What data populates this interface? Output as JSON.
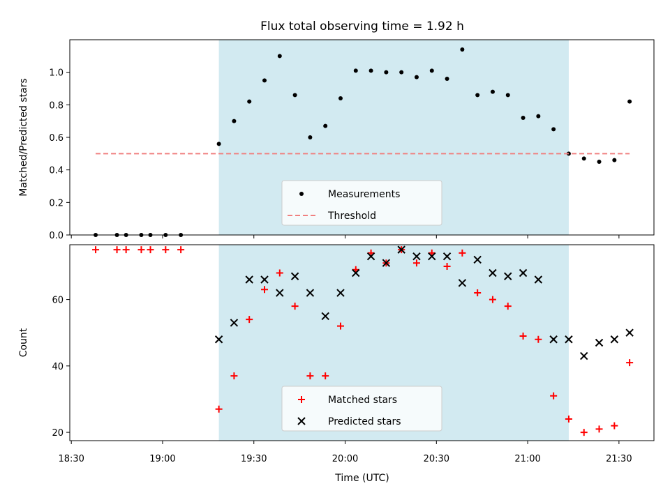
{
  "chart_data": {
    "title": "Flux total observing time = 1.92 h",
    "xlabel": "Time (UTC)",
    "x_tick_labels": [
      "18:30",
      "19:00",
      "19:30",
      "20:00",
      "20:30",
      "21:00",
      "21:30"
    ],
    "x_tick_minutes": [
      1110,
      1140,
      1170,
      1200,
      1230,
      1260,
      1290
    ],
    "xlim_minutes": [
      1109.5,
      1301.5
    ],
    "shaded_interval_minutes": [
      1158.5,
      1273.5
    ],
    "shaded_color": "#add8e6",
    "panels": [
      {
        "type": "scatter",
        "ylabel": "Matched/Predicted stars",
        "ylim": [
          0,
          1.2
        ],
        "y_ticks": [
          0.0,
          0.2,
          0.4,
          0.6,
          0.8,
          1.0
        ],
        "y_tick_labels": [
          "0.0",
          "0.2",
          "0.4",
          "0.6",
          "0.8",
          "1.0"
        ],
        "legend": {
          "position": "lower-center",
          "entries": [
            "Measurements",
            "Threshold"
          ]
        },
        "series": [
          {
            "name": "Measurements",
            "marker": "dot",
            "color": "#000000",
            "x": [
              1118,
              1125,
              1128,
              1133,
              1136,
              1141,
              1146,
              1158.5,
              1163.5,
              1168.5,
              1173.5,
              1178.5,
              1183.5,
              1188.5,
              1193.5,
              1198.5,
              1203.5,
              1208.5,
              1213.5,
              1218.5,
              1223.5,
              1228.5,
              1233.5,
              1238.5,
              1243.5,
              1248.5,
              1253.5,
              1258.5,
              1263.5,
              1268.5,
              1273.5,
              1278.5,
              1283.5,
              1288.5,
              1293.5
            ],
            "y": [
              0.0,
              0.0,
              0.0,
              0.0,
              0.0,
              0.0,
              0.0,
              0.56,
              0.7,
              0.82,
              0.95,
              1.1,
              0.86,
              0.6,
              0.67,
              0.84,
              1.01,
              1.01,
              1.0,
              1.0,
              0.97,
              1.01,
              0.96,
              1.14,
              0.86,
              0.88,
              0.86,
              0.72,
              0.73,
              0.65,
              0.5,
              0.47,
              0.45,
              0.46,
              0.82
            ]
          },
          {
            "name": "Threshold",
            "type": "line",
            "style": "dashed",
            "color": "#f08080",
            "x": [
              1118,
              1293.5
            ],
            "y": [
              0.5,
              0.5
            ]
          }
        ]
      },
      {
        "type": "scatter",
        "ylabel": "Count",
        "ylim": [
          17.5,
          76.5
        ],
        "y_ticks": [
          20,
          40,
          60
        ],
        "y_tick_labels": [
          "20",
          "40",
          "60"
        ],
        "legend": {
          "position": "lower-center",
          "entries": [
            "Matched stars",
            "Predicted stars"
          ]
        },
        "series": [
          {
            "name": "Matched stars",
            "marker": "plus",
            "color": "#ff0000",
            "x": [
              1118,
              1125,
              1128,
              1133,
              1136,
              1141,
              1146,
              1158.5,
              1163.5,
              1168.5,
              1173.5,
              1178.5,
              1183.5,
              1188.5,
              1193.5,
              1198.5,
              1203.5,
              1208.5,
              1213.5,
              1218.5,
              1223.5,
              1228.5,
              1233.5,
              1238.5,
              1243.5,
              1248.5,
              1253.5,
              1258.5,
              1263.5,
              1268.5,
              1273.5,
              1278.5,
              1283.5,
              1288.5,
              1293.5
            ],
            "y": [
              75,
              75,
              75,
              75,
              75,
              75,
              75,
              27,
              37,
              54,
              63,
              68,
              58,
              37,
              37,
              52,
              69,
              74,
              71,
              75,
              71,
              74,
              70,
              74,
              62,
              60,
              58,
              49,
              48,
              31,
              24,
              20,
              21,
              22,
              41
            ]
          },
          {
            "name": "Predicted stars",
            "marker": "x",
            "color": "#000000",
            "x": [
              1158.5,
              1163.5,
              1168.5,
              1173.5,
              1178.5,
              1183.5,
              1188.5,
              1193.5,
              1198.5,
              1203.5,
              1208.5,
              1213.5,
              1218.5,
              1223.5,
              1228.5,
              1233.5,
              1238.5,
              1243.5,
              1248.5,
              1253.5,
              1258.5,
              1263.5,
              1268.5,
              1273.5,
              1278.5,
              1283.5,
              1288.5,
              1293.5
            ],
            "y": [
              48,
              53,
              66,
              66,
              62,
              67,
              62,
              55,
              62,
              68,
              73,
              71,
              75,
              73,
              73,
              73,
              65,
              72,
              68,
              67,
              68,
              66,
              48,
              48,
              43,
              47,
              48,
              50
            ]
          }
        ]
      }
    ]
  }
}
